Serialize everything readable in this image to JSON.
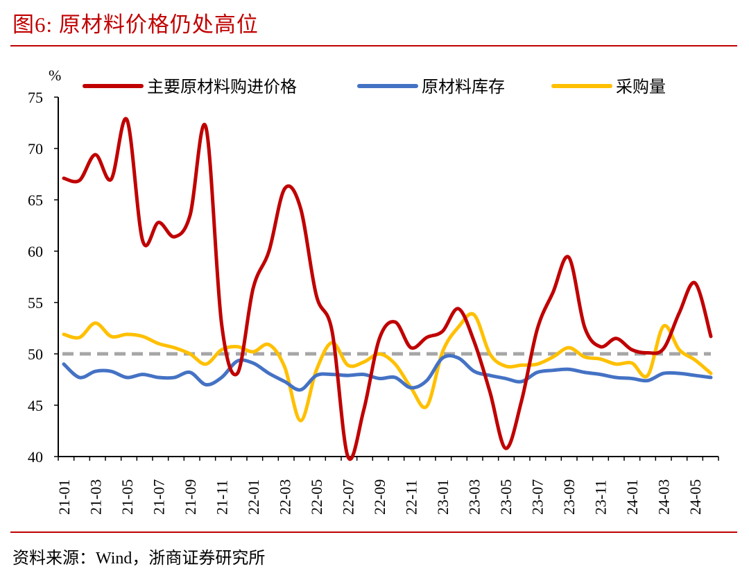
{
  "figure_title": "图6:   原材料价格仍处高位",
  "source": "资料来源：Wind，浙商证券研究所",
  "chart_data": {
    "type": "line",
    "ylabel": "%",
    "ylim": [
      40,
      75
    ],
    "yticks": [
      40,
      45,
      50,
      55,
      60,
      65,
      70,
      75
    ],
    "grid": false,
    "legend_position": "top",
    "reference_line": {
      "value": 50,
      "color": "#a6a6a6",
      "style": "dashed"
    },
    "x": [
      "21-01",
      "21-02",
      "21-03",
      "21-04",
      "21-05",
      "21-06",
      "21-07",
      "21-08",
      "21-09",
      "21-10",
      "21-11",
      "21-12",
      "22-01",
      "22-02",
      "22-03",
      "22-04",
      "22-05",
      "22-06",
      "22-07",
      "22-08",
      "22-09",
      "22-10",
      "22-11",
      "22-12",
      "23-01",
      "23-02",
      "23-03",
      "23-04",
      "23-05",
      "23-06",
      "23-07",
      "23-08",
      "23-09",
      "23-10",
      "23-11",
      "23-12",
      "24-01",
      "24-02",
      "24-03",
      "24-04",
      "24-05",
      "24-06"
    ],
    "xtick_labels": [
      "21-01",
      "21-03",
      "21-05",
      "21-07",
      "21-09",
      "21-11",
      "22-01",
      "22-03",
      "22-05",
      "22-07",
      "22-09",
      "22-11",
      "23-01",
      "23-03",
      "23-05",
      "23-07",
      "23-09",
      "23-11",
      "24-01",
      "24-03",
      "24-05"
    ],
    "series": [
      {
        "name": "主要原材料购进价格",
        "color": "#c00000",
        "values": [
          67.1,
          66.9,
          69.4,
          67.0,
          72.8,
          61.0,
          62.8,
          61.4,
          63.5,
          72.1,
          52.9,
          48.1,
          56.4,
          60.0,
          66.1,
          64.2,
          55.7,
          52.2,
          40.0,
          44.5,
          51.5,
          53.1,
          50.6,
          51.6,
          52.2,
          54.4,
          51.2,
          46.3,
          40.8,
          45.4,
          52.4,
          56.0,
          59.4,
          52.6,
          50.7,
          51.5,
          50.4,
          50.1,
          50.5,
          54.0,
          56.9,
          51.7
        ]
      },
      {
        "name": "原材料库存",
        "color": "#4472c4",
        "values": [
          49.0,
          47.7,
          48.3,
          48.3,
          47.7,
          48.0,
          47.7,
          47.7,
          48.2,
          47.0,
          47.7,
          49.3,
          49.1,
          48.1,
          47.3,
          46.5,
          47.9,
          48.0,
          47.9,
          48.0,
          47.6,
          47.7,
          46.7,
          47.4,
          49.6,
          49.6,
          48.3,
          47.9,
          47.6,
          47.3,
          48.2,
          48.4,
          48.5,
          48.2,
          48.0,
          47.7,
          47.6,
          47.4,
          48.1,
          48.1,
          47.9,
          47.7
        ]
      },
      {
        "name": "采购量",
        "color": "#ffc000",
        "values": [
          51.9,
          51.6,
          53.0,
          51.7,
          51.9,
          51.7,
          51.0,
          50.6,
          50.0,
          49.0,
          50.4,
          50.7,
          50.2,
          50.9,
          48.7,
          43.5,
          48.4,
          51.1,
          48.9,
          49.2,
          50.0,
          49.0,
          46.7,
          44.9,
          50.2,
          52.6,
          53.8,
          50.0,
          48.8,
          48.9,
          49.0,
          49.7,
          50.6,
          49.7,
          49.5,
          49.0,
          49.1,
          47.9,
          52.7,
          50.4,
          49.4,
          48.1
        ]
      }
    ]
  }
}
